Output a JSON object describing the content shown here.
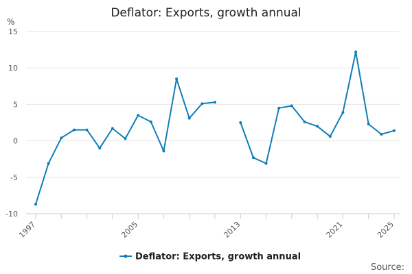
{
  "chart_data": {
    "type": "line",
    "title": "Deflator: Exports, growth annual",
    "y_unit": "%",
    "ylim": [
      -10,
      15
    ],
    "y_ticks": [
      -10,
      -5,
      0,
      5,
      10,
      15
    ],
    "xlim": [
      1997,
      2025
    ],
    "x_tick_labels": [
      1997,
      2005,
      2013,
      2021,
      2025
    ],
    "x_minor_ticks": [
      1997,
      1999,
      2001,
      2003,
      2005,
      2007,
      2009,
      2011,
      2013,
      2015,
      2017,
      2019,
      2021,
      2023,
      2025
    ],
    "grid": true,
    "legend_position": "bottom",
    "series": [
      {
        "name": "Deflator: Exports, growth annual",
        "color": "#0f7db8",
        "x": [
          1997,
          1998,
          1999,
          2000,
          2001,
          2002,
          2003,
          2004,
          2005,
          2006,
          2007,
          2008,
          2009,
          2010,
          2011,
          2012,
          2013,
          2014,
          2015,
          2016,
          2017,
          2018,
          2019,
          2020,
          2021,
          2022,
          2023,
          2024,
          2025
        ],
        "values": [
          -8.7,
          -3.1,
          0.4,
          1.5,
          1.5,
          -1.0,
          1.7,
          0.3,
          3.5,
          2.6,
          -1.4,
          8.5,
          3.1,
          5.1,
          5.3,
          null,
          2.5,
          -2.3,
          -3.1,
          4.5,
          4.8,
          2.6,
          2.0,
          0.6,
          3.9,
          12.2,
          2.3,
          0.9,
          1.4
        ]
      }
    ]
  },
  "footer": {
    "source_label": "Source:"
  }
}
